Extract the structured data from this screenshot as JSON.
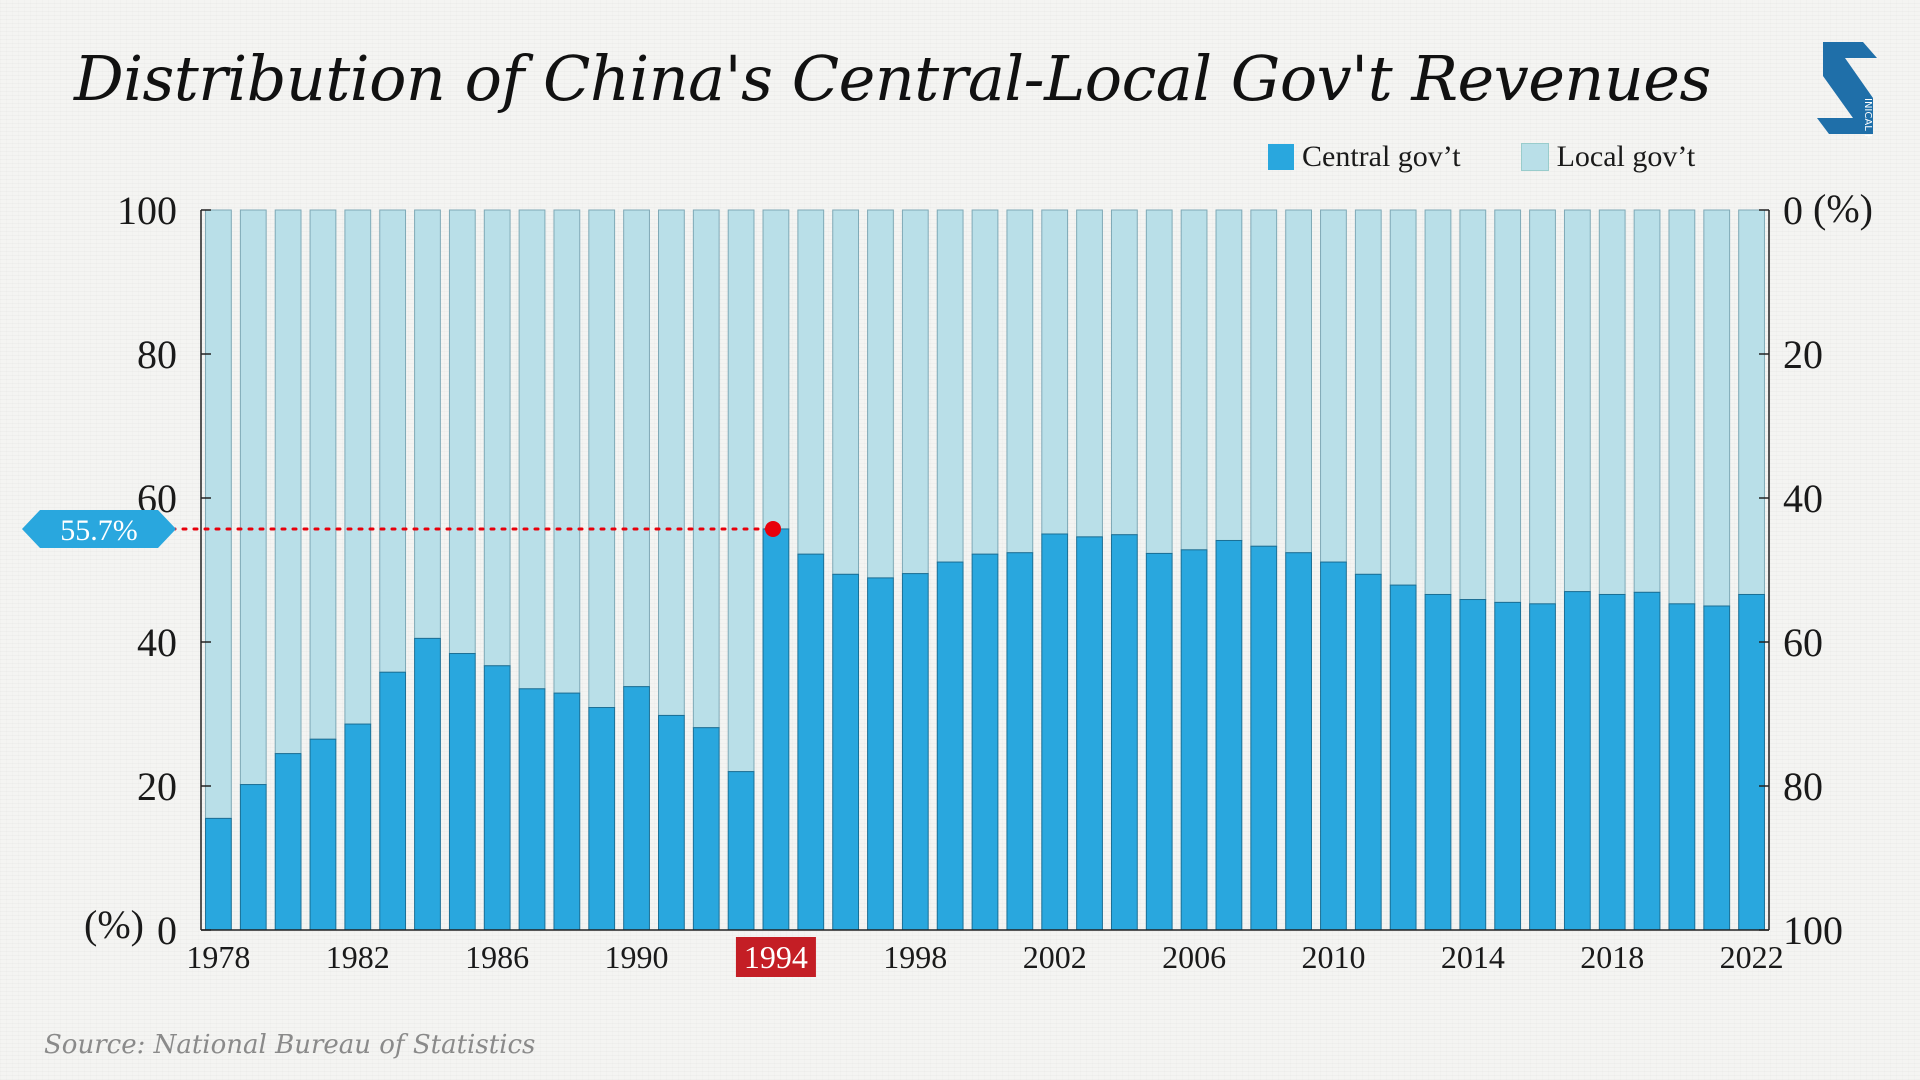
{
  "title": "Distribution of China's Central-Local Gov't Revenues",
  "source": "Source: National Bureau of Statistics",
  "logo": {
    "icon": "sixth-tone-s-logo",
    "text": "INICAL HINA"
  },
  "legend": [
    {
      "label": "Central gov’t",
      "color": "#29a7de"
    },
    {
      "label": "Local gov’t",
      "color": "#b9dfe8"
    }
  ],
  "annotation": {
    "label": "55.7%",
    "year": 1994,
    "highlight_color": "#c41e25",
    "point_color": "#e8000b"
  },
  "chart_data": {
    "type": "bar",
    "stacked": true,
    "title": "Distribution of China's Central-Local Gov't Revenues",
    "x": [
      1978,
      1979,
      1980,
      1981,
      1982,
      1983,
      1984,
      1985,
      1986,
      1987,
      1988,
      1989,
      1990,
      1991,
      1992,
      1993,
      1994,
      1995,
      1996,
      1997,
      1998,
      1999,
      2000,
      2001,
      2002,
      2003,
      2004,
      2005,
      2006,
      2007,
      2008,
      2009,
      2010,
      2011,
      2012,
      2013,
      2014,
      2015,
      2016,
      2017,
      2018,
      2019,
      2020,
      2021,
      2022
    ],
    "x_tick_labels": [
      "1978",
      "1982",
      "1986",
      "1990",
      "1994",
      "1998",
      "2002",
      "2006",
      "2010",
      "2014",
      "2018",
      "2022"
    ],
    "series": [
      {
        "name": "Central gov’t",
        "color": "#29a7de",
        "values": [
          15.5,
          20.2,
          24.5,
          26.5,
          28.6,
          35.8,
          40.5,
          38.4,
          36.7,
          33.5,
          32.9,
          30.9,
          33.8,
          29.8,
          28.1,
          22.0,
          55.7,
          52.2,
          49.4,
          48.9,
          49.5,
          51.1,
          52.2,
          52.4,
          55.0,
          54.6,
          54.9,
          52.3,
          52.8,
          54.1,
          53.3,
          52.4,
          51.1,
          49.4,
          47.9,
          46.6,
          45.9,
          45.5,
          45.3,
          47.0,
          46.6,
          46.9,
          45.3,
          45.0,
          46.6
        ]
      },
      {
        "name": "Local gov’t",
        "color": "#b9dfe8",
        "values": [
          84.5,
          79.8,
          75.5,
          73.5,
          71.4,
          64.2,
          59.5,
          61.6,
          63.3,
          66.5,
          67.1,
          69.1,
          66.2,
          70.2,
          71.9,
          78.0,
          44.3,
          47.8,
          50.6,
          51.1,
          50.5,
          48.9,
          47.8,
          47.6,
          45.0,
          45.4,
          45.1,
          47.7,
          47.2,
          45.9,
          46.7,
          47.6,
          48.9,
          50.6,
          52.1,
          53.4,
          54.1,
          54.5,
          54.7,
          53.0,
          53.4,
          53.1,
          54.7,
          55.0,
          53.4
        ]
      }
    ],
    "y_left": {
      "ticks": [
        0,
        20,
        40,
        60,
        80,
        100
      ],
      "range": [
        0,
        100
      ],
      "unit_label": "(%)"
    },
    "y_right": {
      "ticks": [
        0,
        20,
        40,
        60,
        80,
        100
      ],
      "range": [
        0,
        100
      ],
      "inverted": true,
      "unit_label": "(%)"
    },
    "grid": false,
    "legend_position": "top-right"
  }
}
